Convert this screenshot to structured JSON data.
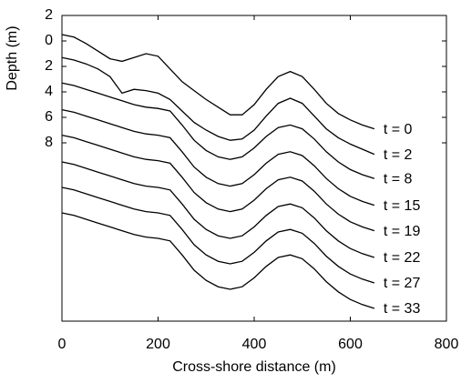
{
  "chart_data": {
    "type": "line",
    "x_label": "Cross-shore distance (m)",
    "y_label": "Depth (m)",
    "x": [
      0,
      25,
      50,
      75,
      100,
      125,
      150,
      175,
      200,
      225,
      250,
      275,
      300,
      325,
      350,
      375,
      400,
      425,
      450,
      475,
      500,
      525,
      550,
      575,
      600,
      625,
      650
    ],
    "series": [
      {
        "name": "t = 0",
        "color": "#000000",
        "values": [
          -0.5,
          -0.3,
          0.2,
          0.8,
          1.4,
          1.6,
          1.3,
          1.0,
          1.2,
          2.2,
          3.2,
          3.9,
          4.6,
          5.2,
          5.8,
          5.8,
          5.0,
          3.8,
          2.8,
          2.4,
          2.8,
          3.8,
          4.9,
          5.7,
          6.2,
          6.6,
          6.9
        ]
      },
      {
        "name": "t = 2",
        "color": "#000000",
        "values": [
          1.3,
          1.5,
          1.8,
          2.2,
          2.8,
          4.1,
          3.8,
          3.9,
          4.1,
          4.6,
          5.5,
          6.4,
          7.0,
          7.5,
          7.8,
          7.7,
          7.0,
          5.9,
          4.9,
          4.5,
          4.9,
          5.9,
          6.9,
          7.6,
          8.1,
          8.5,
          8.9
        ]
      },
      {
        "name": "t = 8",
        "color": "#000000",
        "values": [
          3.3,
          3.5,
          3.8,
          4.1,
          4.4,
          4.7,
          5.0,
          5.2,
          5.3,
          5.5,
          6.6,
          7.8,
          8.6,
          9.1,
          9.3,
          9.1,
          8.4,
          7.5,
          6.8,
          6.6,
          6.9,
          7.7,
          8.7,
          9.5,
          10.1,
          10.5,
          10.8
        ]
      },
      {
        "name": "t = 15",
        "color": "#000000",
        "values": [
          5.4,
          5.6,
          5.9,
          6.2,
          6.5,
          6.8,
          7.1,
          7.3,
          7.4,
          7.6,
          8.7,
          9.9,
          10.7,
          11.2,
          11.4,
          11.2,
          10.5,
          9.6,
          8.9,
          8.7,
          9.0,
          9.8,
          10.8,
          11.6,
          12.2,
          12.6,
          12.9
        ]
      },
      {
        "name": "t = 19",
        "color": "#000000",
        "values": [
          7.4,
          7.6,
          7.9,
          8.2,
          8.5,
          8.8,
          9.1,
          9.3,
          9.4,
          9.6,
          10.7,
          11.9,
          12.7,
          13.2,
          13.4,
          13.2,
          12.5,
          11.6,
          10.9,
          10.7,
          11.0,
          11.8,
          12.8,
          13.6,
          14.2,
          14.6,
          14.9
        ]
      },
      {
        "name": "t = 22",
        "color": "#000000",
        "values": [
          9.5,
          9.7,
          10.0,
          10.3,
          10.6,
          10.9,
          11.2,
          11.4,
          11.5,
          11.7,
          12.8,
          14.0,
          14.8,
          15.3,
          15.5,
          15.3,
          14.6,
          13.7,
          13.0,
          12.8,
          13.1,
          13.9,
          14.9,
          15.7,
          16.3,
          16.7,
          17.0
        ]
      },
      {
        "name": "t = 27",
        "color": "#000000",
        "values": [
          11.5,
          11.7,
          12.0,
          12.3,
          12.6,
          12.9,
          13.2,
          13.4,
          13.5,
          13.7,
          14.8,
          16.0,
          16.8,
          17.3,
          17.5,
          17.3,
          16.6,
          15.7,
          15.0,
          14.8,
          15.1,
          15.9,
          16.9,
          17.7,
          18.3,
          18.7,
          19.0
        ]
      },
      {
        "name": "t = 33",
        "color": "#000000",
        "values": [
          13.5,
          13.7,
          14.0,
          14.3,
          14.6,
          14.9,
          15.2,
          15.4,
          15.5,
          15.7,
          16.8,
          18.0,
          18.8,
          19.3,
          19.5,
          19.3,
          18.6,
          17.7,
          17.0,
          16.8,
          17.1,
          17.9,
          18.9,
          19.7,
          20.3,
          20.7,
          21.0
        ]
      }
    ],
    "xlim": [
      0,
      800
    ],
    "xticks": [
      0,
      200,
      400,
      600,
      800
    ],
    "ylim": [
      -2,
      22
    ],
    "yticks": [
      {
        "value": -2,
        "label": "2"
      },
      0,
      2,
      4,
      6,
      8
    ],
    "y_inverted": true,
    "grid": false
  }
}
